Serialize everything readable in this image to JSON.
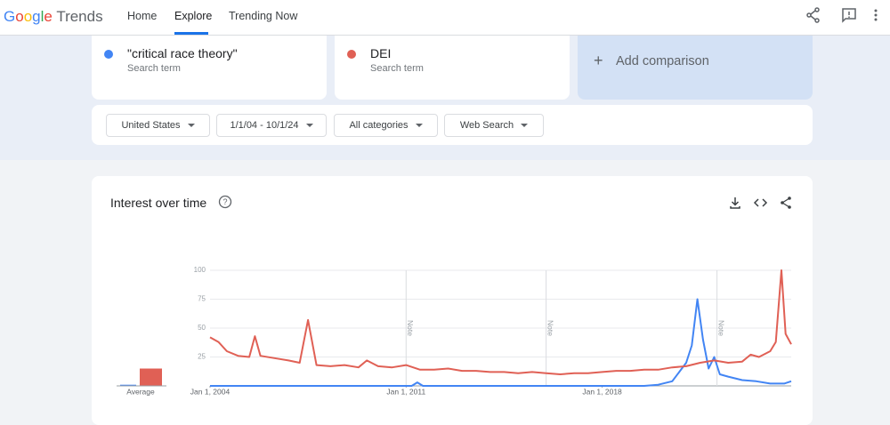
{
  "header": {
    "logo_google": "Google",
    "logo_trends": "Trends",
    "nav": [
      "Home",
      "Explore",
      "Trending Now"
    ]
  },
  "terms": [
    {
      "label": "\"critical race theory\"",
      "sub": "Search term",
      "color": "#4285f4"
    },
    {
      "label": "DEI",
      "sub": "Search term",
      "color": "#e06055"
    }
  ],
  "add_comparison": "Add comparison",
  "filters": [
    "United States",
    "1/1/04 - 10/1/24",
    "All categories",
    "Web Search"
  ],
  "card_title": "Interest over time",
  "chart_data": {
    "type": "line",
    "series": [
      {
        "name": "\"critical race theory\"",
        "color": "#4285f4",
        "x": [
          2004.0,
          2011.2,
          2011.4,
          2011.6,
          2019.5,
          2020.0,
          2020.5,
          2021.0,
          2021.2,
          2021.4,
          2021.6,
          2021.8,
          2022.0,
          2022.2,
          2022.5,
          2023.0,
          2023.5,
          2024.0,
          2024.5,
          2024.75
        ],
        "values": [
          0,
          0,
          3,
          0,
          0,
          1,
          4,
          20,
          35,
          75,
          40,
          15,
          25,
          10,
          8,
          5,
          4,
          2,
          2,
          4
        ]
      },
      {
        "name": "DEI",
        "color": "#e06055",
        "x": [
          2004.0,
          2004.3,
          2004.6,
          2005.0,
          2005.4,
          2005.6,
          2005.8,
          2006.3,
          2006.8,
          2007.2,
          2007.5,
          2007.8,
          2008.3,
          2008.8,
          2009.3,
          2009.6,
          2010.0,
          2010.5,
          2011.0,
          2011.5,
          2012.0,
          2012.5,
          2013.0,
          2013.5,
          2014.0,
          2014.5,
          2015.0,
          2015.5,
          2016.0,
          2016.5,
          2017.0,
          2017.5,
          2018.0,
          2018.5,
          2019.0,
          2019.5,
          2020.0,
          2020.5,
          2021.0,
          2021.5,
          2022.0,
          2022.5,
          2023.0,
          2023.3,
          2023.6,
          2024.0,
          2024.2,
          2024.4,
          2024.55,
          2024.75
        ],
        "values": [
          42,
          38,
          30,
          26,
          25,
          43,
          26,
          24,
          22,
          20,
          57,
          18,
          17,
          18,
          16,
          22,
          17,
          16,
          18,
          14,
          14,
          15,
          13,
          13,
          12,
          12,
          11,
          12,
          11,
          10,
          11,
          11,
          12,
          13,
          13,
          14,
          14,
          16,
          17,
          20,
          22,
          20,
          21,
          27,
          25,
          30,
          38,
          100,
          45,
          36
        ]
      }
    ],
    "xlim": [
      2004,
      2024.75
    ],
    "xticks": [
      {
        "value": 2004,
        "label": "Jan 1, 2004"
      },
      {
        "value": 2011,
        "label": "Jan 1, 2011"
      },
      {
        "value": 2018,
        "label": "Jan 1, 2018"
      }
    ],
    "ylim": [
      0,
      100
    ],
    "yticks": [
      25,
      50,
      75,
      100
    ],
    "grid": true,
    "notes": [
      {
        "x": 2011,
        "label": "Note"
      },
      {
        "x": 2016,
        "label": "Note"
      },
      {
        "x": 2022.1,
        "label": "Note"
      }
    ],
    "average": {
      "label": "Average",
      "values": [
        1,
        15
      ]
    }
  }
}
